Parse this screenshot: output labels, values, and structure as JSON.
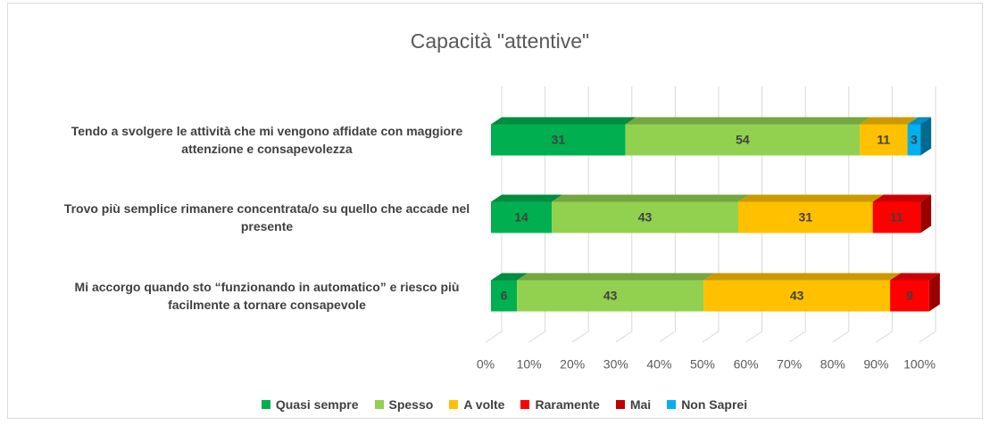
{
  "chart_data": {
    "type": "bar3d_stacked_horizontal",
    "title": "Capacità \"attentive\"",
    "categories": [
      "Tendo a svolgere le attività che mi vengono affidate con maggiore attenzione e consapevolezza",
      "Trovo più semplice rimanere concentrata/o su  quello che accade  nel presente",
      "Mi accorgo quando sto “funzionando in automatico” e riesco più  facilmente a tornare consapevole"
    ],
    "series": [
      {
        "name": "Quasi sempre",
        "color": "#00b050",
        "values": [
          31,
          14,
          6
        ]
      },
      {
        "name": "Spesso",
        "color": "#92d050",
        "values": [
          54,
          43,
          43
        ]
      },
      {
        "name": "A volte",
        "color": "#ffc000",
        "values": [
          11,
          31,
          43
        ]
      },
      {
        "name": "Raramente",
        "color": "#ff0000",
        "values": [
          null,
          11,
          9
        ]
      },
      {
        "name": "Mai",
        "color": "#c00000",
        "values": [
          null,
          null,
          null
        ]
      },
      {
        "name": "Non Saprei",
        "color": "#00b0f0",
        "values": [
          3,
          null,
          null
        ]
      }
    ],
    "xlim": [
      0,
      100
    ],
    "xticks": [
      {
        "value": 0,
        "label": "0%"
      },
      {
        "value": 10,
        "label": "10%"
      },
      {
        "value": 20,
        "label": "20%"
      },
      {
        "value": 30,
        "label": "30%"
      },
      {
        "value": 40,
        "label": "40%"
      },
      {
        "value": 50,
        "label": "50%"
      },
      {
        "value": 60,
        "label": "60%"
      },
      {
        "value": 70,
        "label": "70%"
      },
      {
        "value": 80,
        "label": "80%"
      },
      {
        "value": 90,
        "label": "90%"
      },
      {
        "value": 100,
        "label": "100%"
      }
    ],
    "grid": true,
    "legend": "bottom"
  }
}
